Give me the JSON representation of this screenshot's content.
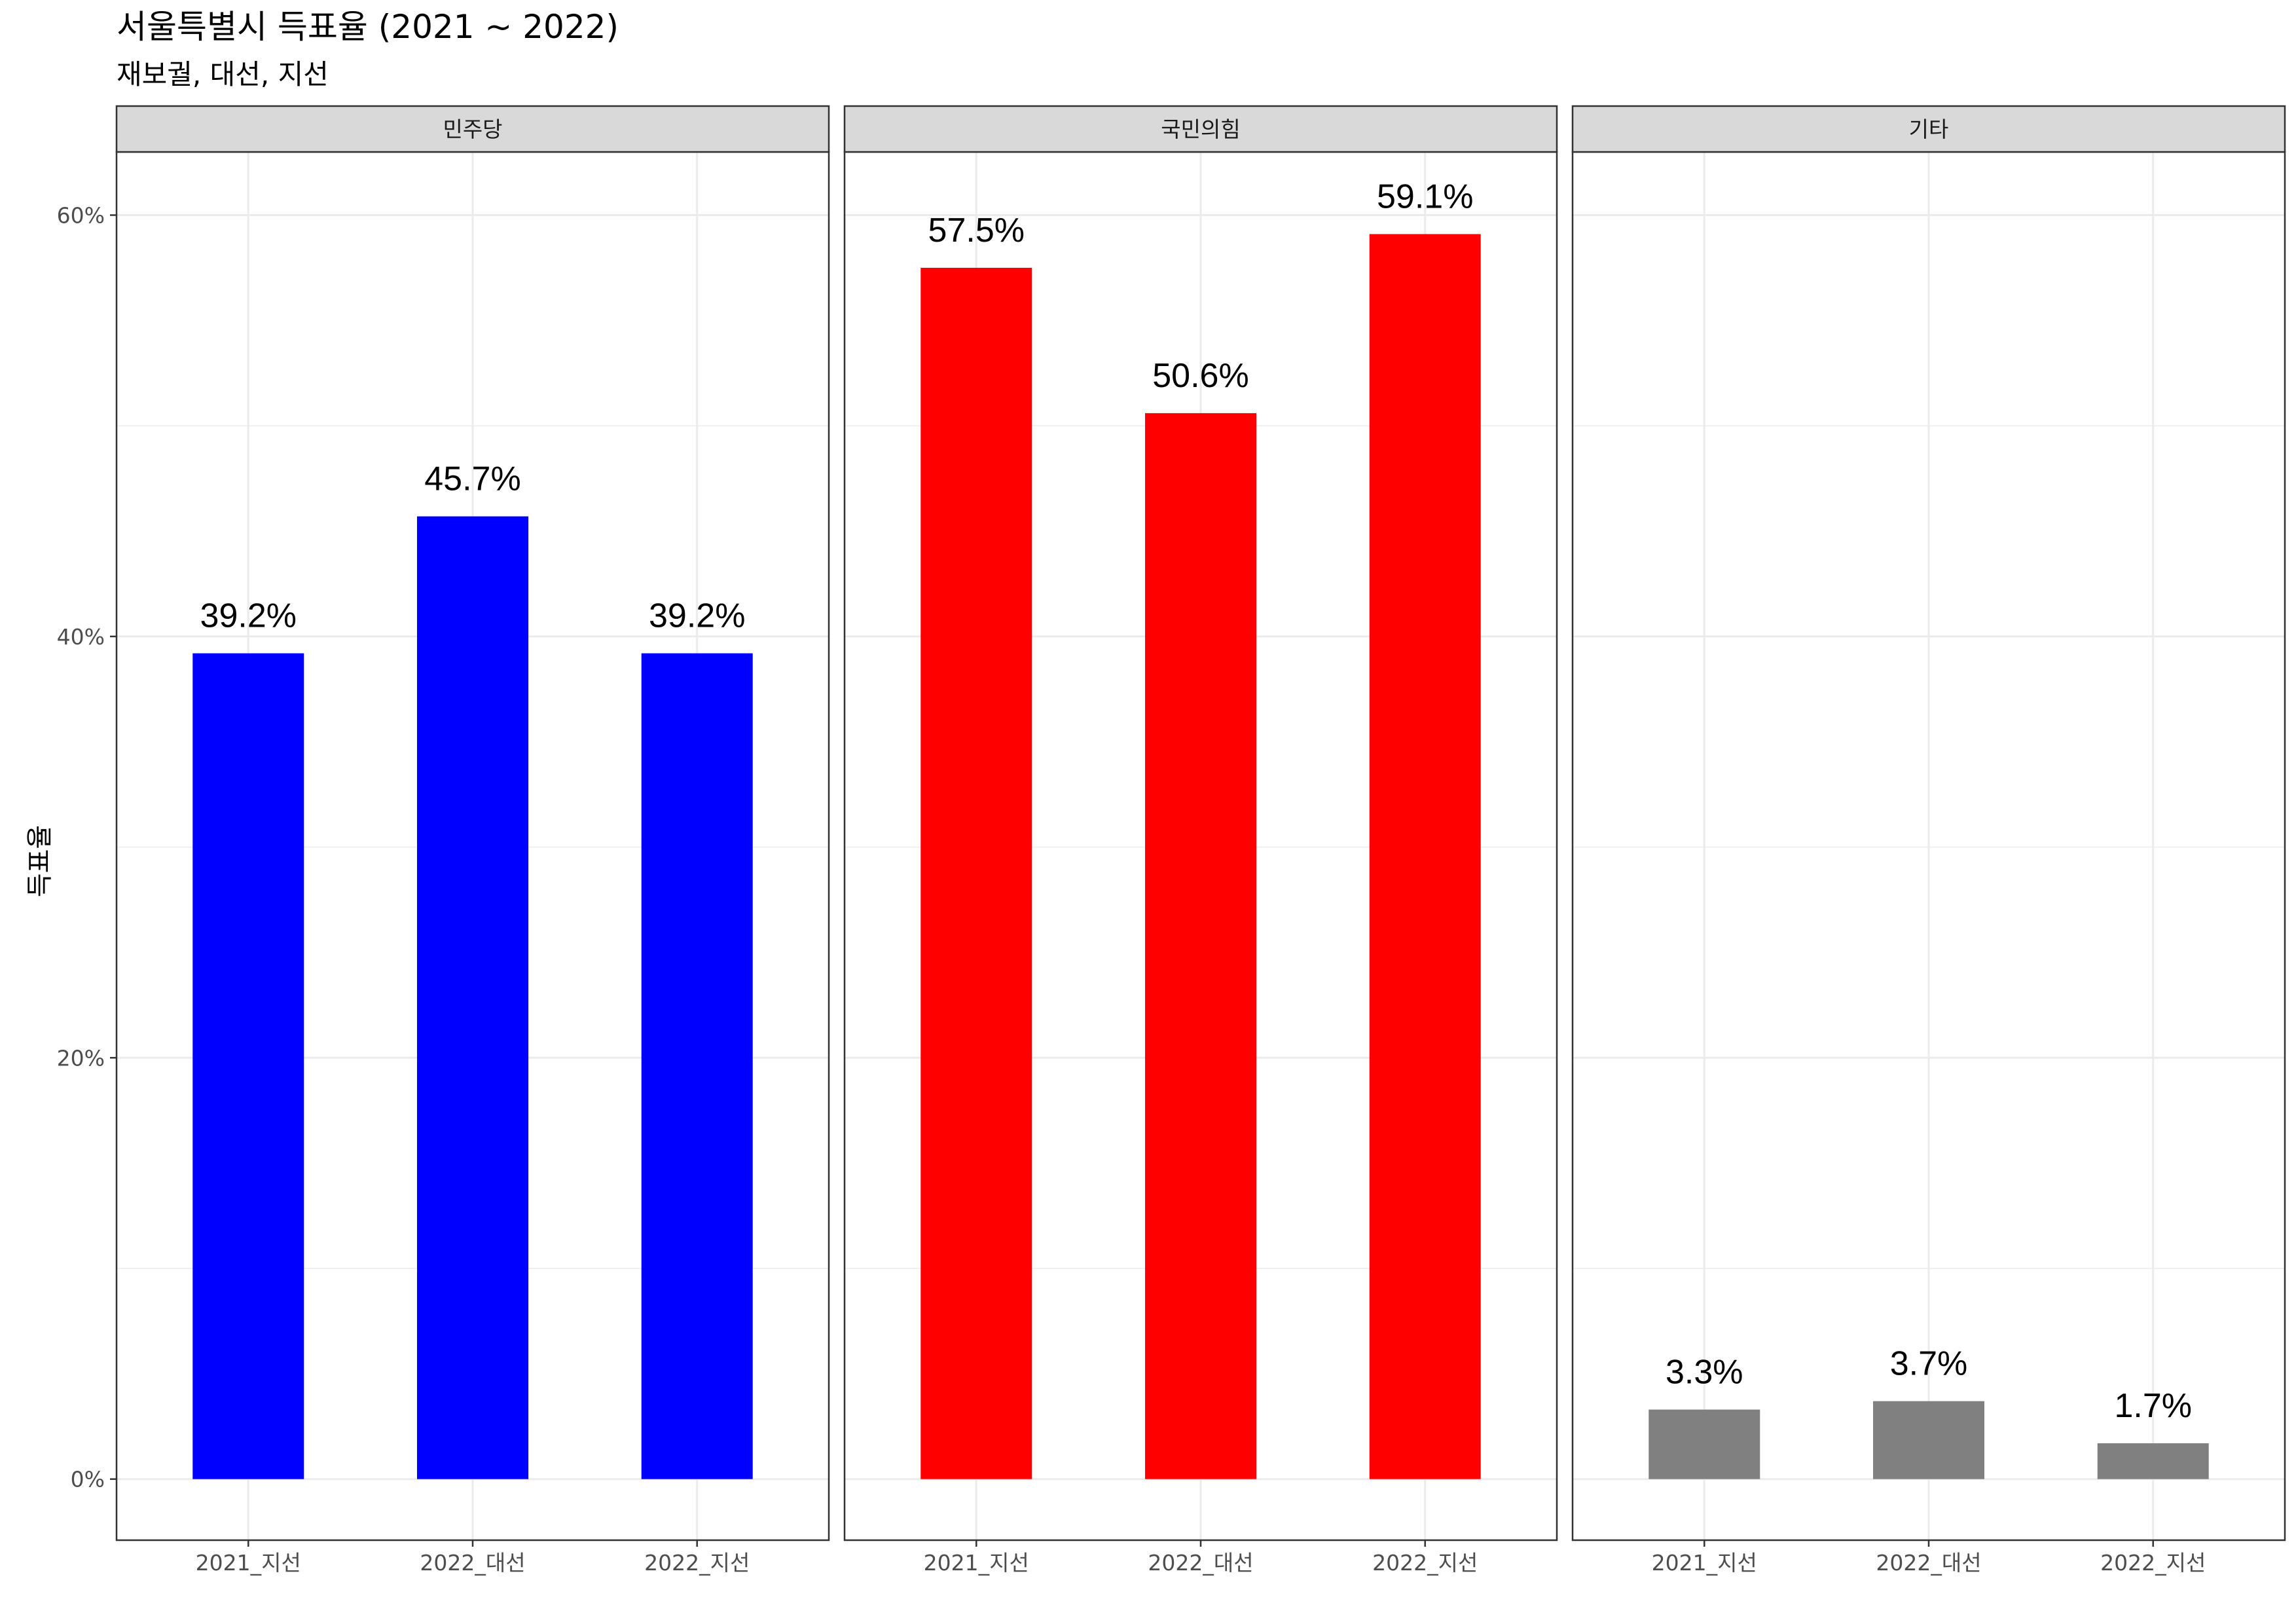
{
  "chart_data": {
    "type": "bar",
    "title": "서울특별시 득표율 (2021 ~ 2022)",
    "subtitle": "재보궐, 대선, 지선",
    "ylabel": "득표율",
    "xlabel": "",
    "ylim": [
      -0.029,
      0.63
    ],
    "yticks": [
      0,
      0.2,
      0.4,
      0.6
    ],
    "ytick_labels": [
      "0%",
      "20%",
      "40%",
      "60%"
    ],
    "categories": [
      "2021_지선",
      "2022_대선",
      "2022_지선"
    ],
    "grid": true,
    "legend": "none",
    "facets": [
      {
        "name": "민주당",
        "color": "#0000FF",
        "values": [
          0.392,
          0.457,
          0.392
        ],
        "labels": [
          "39.2%",
          "45.7%",
          "39.2%"
        ]
      },
      {
        "name": "국민의힘",
        "color": "#FF0000",
        "values": [
          0.575,
          0.506,
          0.591
        ],
        "labels": [
          "57.5%",
          "50.6%",
          "59.1%"
        ]
      },
      {
        "name": "기타",
        "color": "#808080",
        "values": [
          0.033,
          0.037,
          0.017
        ],
        "labels": [
          "3.3%",
          "3.7%",
          "1.7%"
        ]
      }
    ]
  }
}
